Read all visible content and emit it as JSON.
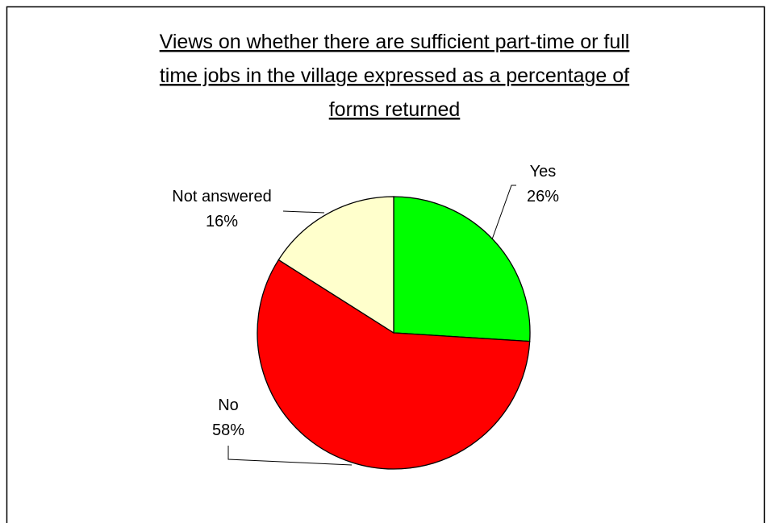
{
  "chart_data": {
    "type": "pie",
    "title_lines": [
      "Views on whether there are sufficient part-time or full",
      "time jobs in the village expressed as a percentage of",
      "forms returned"
    ],
    "slices": [
      {
        "label": "Yes",
        "value": 26,
        "value_label": "26%",
        "color": "#00FF00"
      },
      {
        "label": "No",
        "value": 58,
        "value_label": "58%",
        "color": "#FF0000"
      },
      {
        "label": "Not answered",
        "value": 16,
        "value_label": "16%",
        "color": "#FFFFCC"
      }
    ],
    "legend": "none"
  }
}
